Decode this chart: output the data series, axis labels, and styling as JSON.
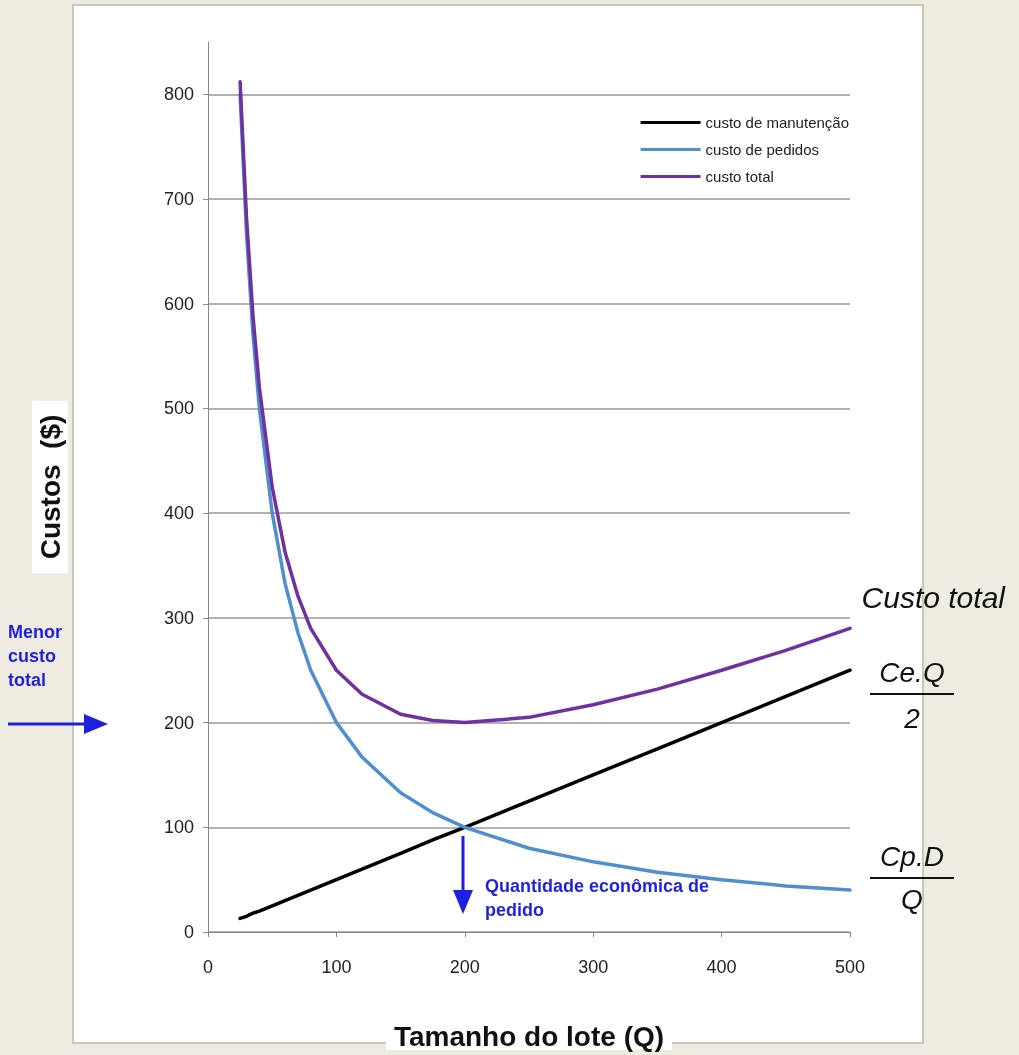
{
  "chart_data": {
    "type": "line",
    "xlabel": "Tamanho do lote (Q)",
    "ylabel": "Custos  ($)",
    "x": [
      25,
      30,
      35,
      40,
      50,
      60,
      70,
      80,
      100,
      120,
      150,
      175,
      200,
      250,
      300,
      350,
      400,
      450,
      500
    ],
    "series": [
      {
        "name": "custo de manutenção",
        "color": "#000000",
        "values": [
          13,
          15,
          18,
          20,
          25,
          30,
          35,
          40,
          50,
          60,
          75,
          88,
          100,
          125,
          150,
          175,
          200,
          225,
          250
        ]
      },
      {
        "name": "custo de pedidos",
        "color": "#4f8fcf",
        "values": [
          800,
          667,
          571,
          500,
          400,
          333,
          286,
          250,
          200,
          167,
          133,
          114,
          100,
          80,
          67,
          57,
          50,
          44,
          40
        ]
      },
      {
        "name": "custo total",
        "color": "#7030a0",
        "values": [
          812,
          682,
          589,
          520,
          425,
          363,
          321,
          290,
          250,
          227,
          208,
          202,
          200,
          205,
          217,
          232,
          250,
          269,
          290
        ]
      }
    ],
    "xlim": [
      0,
      500
    ],
    "xticks": [
      0,
      100,
      200,
      300,
      400,
      500
    ],
    "ylim": [
      0,
      850
    ],
    "yticks": [
      0,
      100,
      200,
      300,
      400,
      500,
      600,
      700,
      800
    ],
    "grid": "y",
    "legend": "top right",
    "marker": "none",
    "line_style": "solid",
    "annotations": [
      "Custo total",
      "Ce.Q",
      "2",
      "Cp.D",
      "Q",
      "Menor custo total",
      "Quantidade econômica de pedido"
    ]
  }
}
